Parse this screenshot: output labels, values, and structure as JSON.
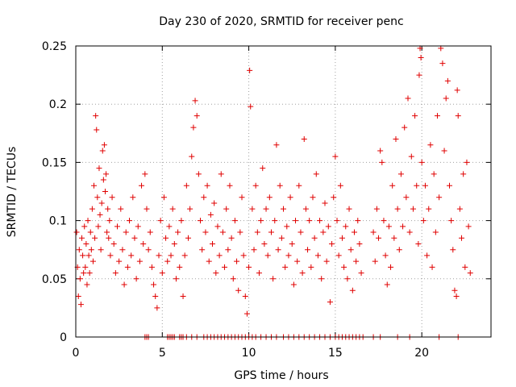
{
  "chart_data": {
    "type": "scatter",
    "title": "Day 230 of 2020, SRMTID for receiver penc",
    "xlabel": "GPS time / hours",
    "ylabel": "SRMTID / TECUs",
    "xlim": [
      0,
      24
    ],
    "ylim": [
      0,
      0.25
    ],
    "x_ticks": [
      0,
      5,
      10,
      15,
      20
    ],
    "x_tick_labels": [
      "0",
      "5",
      "10",
      "15",
      "20"
    ],
    "y_ticks": [
      0,
      0.05,
      0.1,
      0.15,
      0.2,
      0.25
    ],
    "y_tick_labels": [
      "0",
      "0.05",
      "0.1",
      "0.15",
      "0.2",
      "0.25"
    ],
    "grid": true,
    "marker": "+",
    "color": "#e00000",
    "series": [
      {
        "name": "SRMTID",
        "points": [
          [
            0.05,
            0.09
          ],
          [
            0.1,
            0.06
          ],
          [
            0.15,
            0.035
          ],
          [
            0.2,
            0.075
          ],
          [
            0.25,
            0.05
          ],
          [
            0.3,
            0.028
          ],
          [
            0.35,
            0.085
          ],
          [
            0.4,
            0.07
          ],
          [
            0.45,
            0.055
          ],
          [
            0.5,
            0.095
          ],
          [
            0.55,
            0.06
          ],
          [
            0.6,
            0.08
          ],
          [
            0.65,
            0.045
          ],
          [
            0.7,
            0.1
          ],
          [
            0.75,
            0.07
          ],
          [
            0.8,
            0.055
          ],
          [
            0.85,
            0.09
          ],
          [
            0.9,
            0.075
          ],
          [
            0.95,
            0.11
          ],
          [
            1.0,
            0.065
          ],
          [
            1.05,
            0.13
          ],
          [
            1.1,
            0.085
          ],
          [
            1.15,
            0.19
          ],
          [
            1.2,
            0.178
          ],
          [
            1.25,
            0.12
          ],
          [
            1.3,
            0.095
          ],
          [
            1.35,
            0.145
          ],
          [
            1.4,
            0.105
          ],
          [
            1.45,
            0.075
          ],
          [
            1.5,
            0.115
          ],
          [
            1.55,
            0.16
          ],
          [
            1.6,
            0.135
          ],
          [
            1.65,
            0.165
          ],
          [
            1.7,
            0.125
          ],
          [
            1.75,
            0.14
          ],
          [
            1.8,
            0.09
          ],
          [
            1.85,
            0.11
          ],
          [
            1.9,
            0.085
          ],
          [
            1.95,
            0.1
          ],
          [
            2.0,
            0.07
          ],
          [
            2.1,
            0.12
          ],
          [
            2.2,
            0.08
          ],
          [
            2.3,
            0.055
          ],
          [
            2.4,
            0.095
          ],
          [
            2.5,
            0.065
          ],
          [
            2.6,
            0.11
          ],
          [
            2.7,
            0.075
          ],
          [
            2.8,
            0.045
          ],
          [
            2.9,
            0.09
          ],
          [
            3.0,
            0.06
          ],
          [
            3.1,
            0.1
          ],
          [
            3.2,
            0.07
          ],
          [
            3.3,
            0.12
          ],
          [
            3.4,
            0.085
          ],
          [
            3.5,
            0.05
          ],
          [
            3.6,
            0.095
          ],
          [
            3.7,
            0.065
          ],
          [
            3.8,
            0.13
          ],
          [
            3.9,
            0.08
          ],
          [
            4.0,
            0.14
          ],
          [
            4.1,
            0.11
          ],
          [
            4.2,
            0.075
          ],
          [
            4.3,
            0.09
          ],
          [
            4.4,
            0.06
          ],
          [
            4.5,
            0.045
          ],
          [
            4.6,
            0.035
          ],
          [
            4.7,
            0.025
          ],
          [
            4.8,
            0.07
          ],
          [
            4.9,
            0.1
          ],
          [
            5.0,
            0.055
          ],
          [
            5.1,
            0.12
          ],
          [
            5.2,
            0.085
          ],
          [
            5.3,
            0.065
          ],
          [
            5.4,
            0.095
          ],
          [
            5.5,
            0.07
          ],
          [
            5.6,
            0.11
          ],
          [
            5.7,
            0.08
          ],
          [
            5.8,
            0.05
          ],
          [
            5.9,
            0.09
          ],
          [
            6.0,
            0.06
          ],
          [
            6.1,
            0.1
          ],
          [
            6.2,
            0.035
          ],
          [
            6.3,
            0.07
          ],
          [
            6.4,
            0.13
          ],
          [
            6.5,
            0.085
          ],
          [
            6.6,
            0.11
          ],
          [
            6.7,
            0.155
          ],
          [
            6.8,
            0.18
          ],
          [
            6.9,
            0.203
          ],
          [
            7.0,
            0.19
          ],
          [
            7.1,
            0.14
          ],
          [
            7.2,
            0.1
          ],
          [
            7.3,
            0.075
          ],
          [
            7.4,
            0.12
          ],
          [
            7.5,
            0.09
          ],
          [
            7.6,
            0.13
          ],
          [
            7.7,
            0.065
          ],
          [
            7.8,
            0.105
          ],
          [
            7.9,
            0.08
          ],
          [
            8.0,
            0.115
          ],
          [
            8.1,
            0.055
          ],
          [
            8.2,
            0.095
          ],
          [
            8.3,
            0.07
          ],
          [
            8.4,
            0.14
          ],
          [
            8.5,
            0.09
          ],
          [
            8.6,
            0.06
          ],
          [
            8.7,
            0.11
          ],
          [
            8.8,
            0.075
          ],
          [
            8.9,
            0.13
          ],
          [
            9.0,
            0.085
          ],
          [
            9.1,
            0.05
          ],
          [
            9.2,
            0.1
          ],
          [
            9.3,
            0.065
          ],
          [
            9.4,
            0.04
          ],
          [
            9.5,
            0.09
          ],
          [
            9.6,
            0.12
          ],
          [
            9.7,
            0.07
          ],
          [
            9.8,
            0.035
          ],
          [
            9.9,
            0.02
          ],
          [
            10.0,
            0.06
          ],
          [
            10.05,
            0.229
          ],
          [
            10.1,
            0.198
          ],
          [
            10.2,
            0.11
          ],
          [
            10.3,
            0.075
          ],
          [
            10.4,
            0.13
          ],
          [
            10.5,
            0.09
          ],
          [
            10.6,
            0.055
          ],
          [
            10.7,
            0.1
          ],
          [
            10.8,
            0.145
          ],
          [
            10.9,
            0.08
          ],
          [
            11.0,
            0.11
          ],
          [
            11.1,
            0.07
          ],
          [
            11.2,
            0.12
          ],
          [
            11.3,
            0.09
          ],
          [
            11.4,
            0.05
          ],
          [
            11.5,
            0.1
          ],
          [
            11.6,
            0.165
          ],
          [
            11.7,
            0.075
          ],
          [
            11.8,
            0.13
          ],
          [
            11.9,
            0.085
          ],
          [
            12.0,
            0.11
          ],
          [
            12.1,
            0.06
          ],
          [
            12.2,
            0.095
          ],
          [
            12.3,
            0.07
          ],
          [
            12.4,
            0.12
          ],
          [
            12.5,
            0.08
          ],
          [
            12.6,
            0.045
          ],
          [
            12.7,
            0.1
          ],
          [
            12.8,
            0.065
          ],
          [
            12.9,
            0.13
          ],
          [
            13.0,
            0.09
          ],
          [
            13.1,
            0.055
          ],
          [
            13.2,
            0.17
          ],
          [
            13.3,
            0.11
          ],
          [
            13.4,
            0.075
          ],
          [
            13.5,
            0.1
          ],
          [
            13.6,
            0.06
          ],
          [
            13.7,
            0.12
          ],
          [
            13.8,
            0.085
          ],
          [
            13.9,
            0.14
          ],
          [
            14.0,
            0.07
          ],
          [
            14.1,
            0.1
          ],
          [
            14.2,
            0.05
          ],
          [
            14.3,
            0.09
          ],
          [
            14.4,
            0.115
          ],
          [
            14.5,
            0.065
          ],
          [
            14.6,
            0.095
          ],
          [
            14.7,
            0.03
          ],
          [
            14.8,
            0.08
          ],
          [
            14.9,
            0.12
          ],
          [
            15.0,
            0.155
          ],
          [
            15.1,
            0.1
          ],
          [
            15.2,
            0.07
          ],
          [
            15.3,
            0.13
          ],
          [
            15.4,
            0.085
          ],
          [
            15.5,
            0.06
          ],
          [
            15.6,
            0.095
          ],
          [
            15.7,
            0.05
          ],
          [
            15.8,
            0.11
          ],
          [
            15.9,
            0.075
          ],
          [
            16.0,
            0.04
          ],
          [
            16.1,
            0.09
          ],
          [
            16.2,
            0.065
          ],
          [
            16.3,
            0.1
          ],
          [
            16.4,
            0.08
          ],
          [
            16.5,
            0.055
          ],
          [
            17.2,
            0.09
          ],
          [
            17.3,
            0.065
          ],
          [
            17.4,
            0.11
          ],
          [
            17.5,
            0.085
          ],
          [
            17.6,
            0.16
          ],
          [
            17.7,
            0.15
          ],
          [
            17.8,
            0.1
          ],
          [
            17.9,
            0.07
          ],
          [
            18.0,
            0.045
          ],
          [
            18.1,
            0.095
          ],
          [
            18.2,
            0.06
          ],
          [
            18.3,
            0.13
          ],
          [
            18.4,
            0.085
          ],
          [
            18.5,
            0.17
          ],
          [
            18.6,
            0.11
          ],
          [
            18.7,
            0.075
          ],
          [
            18.8,
            0.14
          ],
          [
            18.9,
            0.095
          ],
          [
            19.0,
            0.18
          ],
          [
            19.1,
            0.12
          ],
          [
            19.2,
            0.205
          ],
          [
            19.3,
            0.09
          ],
          [
            19.4,
            0.155
          ],
          [
            19.5,
            0.11
          ],
          [
            19.6,
            0.19
          ],
          [
            19.7,
            0.13
          ],
          [
            19.8,
            0.08
          ],
          [
            19.85,
            0.225
          ],
          [
            19.9,
            0.248
          ],
          [
            19.95,
            0.24
          ],
          [
            20.0,
            0.15
          ],
          [
            20.1,
            0.1
          ],
          [
            20.2,
            0.13
          ],
          [
            20.3,
            0.07
          ],
          [
            20.4,
            0.11
          ],
          [
            20.5,
            0.165
          ],
          [
            20.6,
            0.06
          ],
          [
            20.7,
            0.14
          ],
          [
            20.8,
            0.09
          ],
          [
            20.9,
            0.19
          ],
          [
            21.0,
            0.12
          ],
          [
            21.1,
            0.248
          ],
          [
            21.2,
            0.235
          ],
          [
            21.3,
            0.16
          ],
          [
            21.4,
            0.205
          ],
          [
            21.5,
            0.22
          ],
          [
            21.6,
            0.13
          ],
          [
            21.7,
            0.1
          ],
          [
            21.8,
            0.075
          ],
          [
            21.9,
            0.04
          ],
          [
            22.0,
            0.035
          ],
          [
            22.05,
            0.212
          ],
          [
            22.1,
            0.19
          ],
          [
            22.2,
            0.11
          ],
          [
            22.3,
            0.085
          ],
          [
            22.4,
            0.14
          ],
          [
            22.5,
            0.06
          ],
          [
            22.6,
            0.15
          ],
          [
            22.7,
            0.095
          ],
          [
            22.8,
            0.055
          ]
        ]
      }
    ],
    "zero_markers_x": [
      4.0,
      4.1,
      4.2,
      5.3,
      5.4,
      5.5,
      5.6,
      5.7,
      6.0,
      6.1,
      6.2,
      6.4,
      6.7,
      7.0,
      7.4,
      7.6,
      7.8,
      8.0,
      8.2,
      8.4,
      8.6,
      8.8,
      9.0,
      9.2,
      9.4,
      9.6,
      9.8,
      10.0,
      10.2,
      10.4,
      10.7,
      11.0,
      11.3,
      11.6,
      12.0,
      12.3,
      12.6,
      12.9,
      13.2,
      13.5,
      13.8,
      14.1,
      14.4,
      14.7,
      15.0,
      15.2,
      15.4,
      15.6,
      15.8,
      16.0,
      16.2,
      16.4,
      16.6,
      17.2,
      17.6,
      18.6,
      19.3,
      21.0,
      22.1
    ]
  }
}
